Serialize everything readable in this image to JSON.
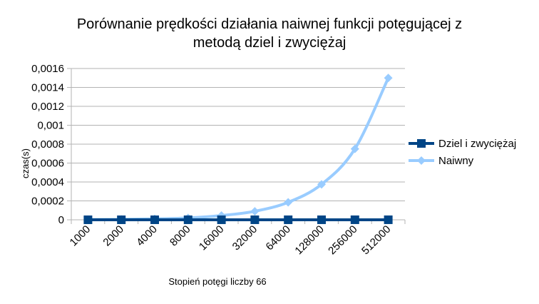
{
  "chart_data": {
    "type": "line",
    "title_lines": [
      "Porównanie prędkości działania naiwnej funkcji potęgującej z",
      "metodą dziel i zwyciężaj"
    ],
    "xlabel": "Stopień potęgi liczby 66",
    "ylabel": "czas(s)",
    "categories": [
      "1000",
      "2000",
      "4000",
      "8000",
      "16000",
      "32000",
      "64000",
      "128000",
      "256000",
      "512000"
    ],
    "y_ticks": [
      "0",
      "0,0002",
      "0,0004",
      "0,0006",
      "0,0008",
      "0,001",
      "0,0012",
      "0,0014",
      "0,0016"
    ],
    "ylim": [
      0,
      0.0016
    ],
    "grid": "horizontal",
    "legend_position": "right",
    "series": [
      {
        "name": "Dziel i zwyciężaj",
        "color": "#004586",
        "marker": "square",
        "values": [
          2e-07,
          2e-07,
          2e-07,
          3e-07,
          3e-07,
          3e-07,
          3e-07,
          3e-07,
          4e-07,
          4e-07
        ]
      },
      {
        "name": "Naiwny",
        "color": "#99ccff",
        "marker": "diamond",
        "values": [
          3e-06,
          5e-06,
          1e-05,
          2e-05,
          4.5e-05,
          9e-05,
          0.000185,
          0.000375,
          0.00075,
          0.0015
        ]
      }
    ]
  }
}
